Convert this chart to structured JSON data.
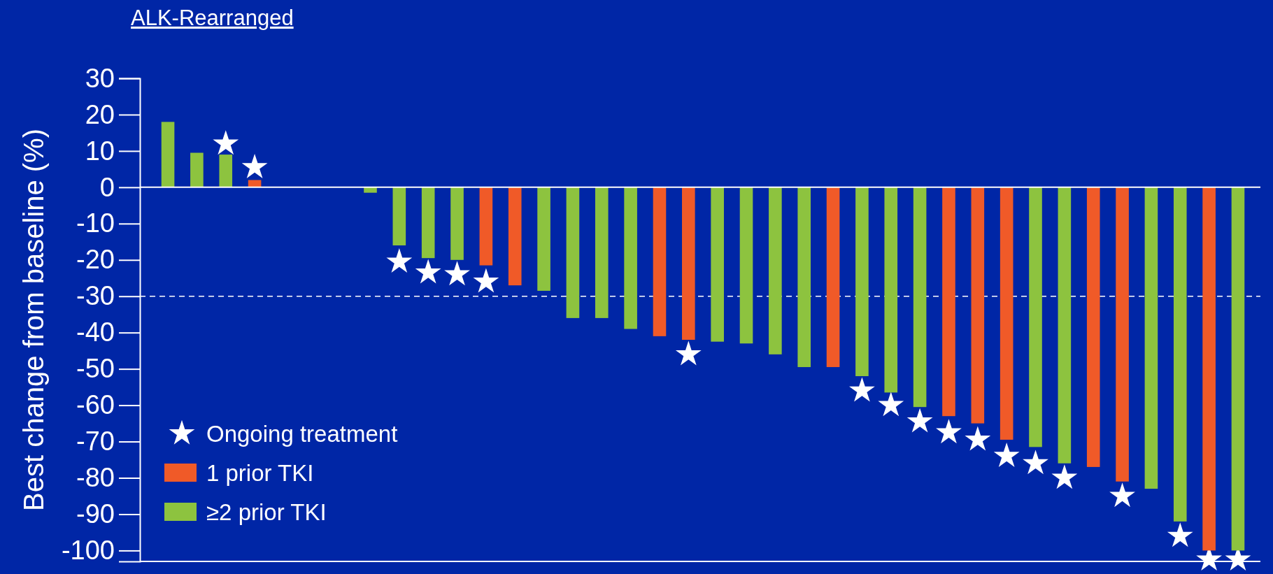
{
  "chart_data": {
    "type": "bar",
    "title": "ALK-Rearranged",
    "ylabel": "Best change from baseline (%)",
    "categories": [
      null,
      null,
      null,
      null,
      null,
      null,
      null,
      null,
      null,
      null,
      null,
      null,
      null,
      null,
      null,
      null,
      null,
      null,
      null,
      null,
      null,
      null,
      null,
      null,
      null,
      null,
      null,
      null,
      null,
      null,
      null,
      null,
      null,
      null,
      null,
      null,
      null,
      null
    ],
    "series": [
      {
        "name": "Ongoing treatment",
        "type": "scatter",
        "marker": "star",
        "color": "#ffffff",
        "values": [
          null,
          null,
          12,
          5.5,
          null,
          null,
          null,
          null,
          -20.5,
          -23.5,
          -24,
          -26,
          null,
          null,
          null,
          null,
          null,
          null,
          -46,
          null,
          null,
          null,
          null,
          null,
          -56,
          -60,
          -64.5,
          -67.5,
          -69.5,
          -74,
          -76,
          -80,
          null,
          -85,
          null,
          -96,
          -102.5,
          -102.5
        ]
      },
      {
        "name": "1 prior TKI",
        "color": "#f05a28",
        "values": [
          null,
          null,
          null,
          2,
          null,
          null,
          null,
          null,
          null,
          null,
          null,
          -21.5,
          -27,
          null,
          null,
          null,
          null,
          -41,
          -42,
          null,
          null,
          null,
          null,
          -49.5,
          null,
          null,
          null,
          -63,
          -65,
          -69.5,
          null,
          null,
          -77,
          -81,
          null,
          null,
          -100,
          null
        ]
      },
      {
        "name": "≥2 prior TKI",
        "color": "#8dc33f",
        "values": [
          18,
          9.5,
          9,
          null,
          null,
          null,
          null,
          -1.5,
          -16,
          -19.5,
          -20,
          null,
          null,
          -28.5,
          -36,
          -36,
          -39,
          null,
          null,
          -42.5,
          -43,
          -46,
          -49.5,
          null,
          -52,
          -56.5,
          -60.5,
          null,
          null,
          null,
          -71.5,
          -76,
          null,
          null,
          -83,
          -92,
          null,
          -100
        ]
      }
    ],
    "ylim": [
      -103,
      30
    ],
    "yticks": [
      30,
      20,
      10,
      0,
      -10,
      -20,
      -30,
      -40,
      -50,
      -60,
      -70,
      -80,
      -90,
      -100
    ],
    "ref_lines": [
      {
        "axis": "y",
        "value": -30,
        "color": "#ffffff",
        "line_style": "dashed"
      }
    ],
    "legend": "bottom left",
    "grid": false
  }
}
